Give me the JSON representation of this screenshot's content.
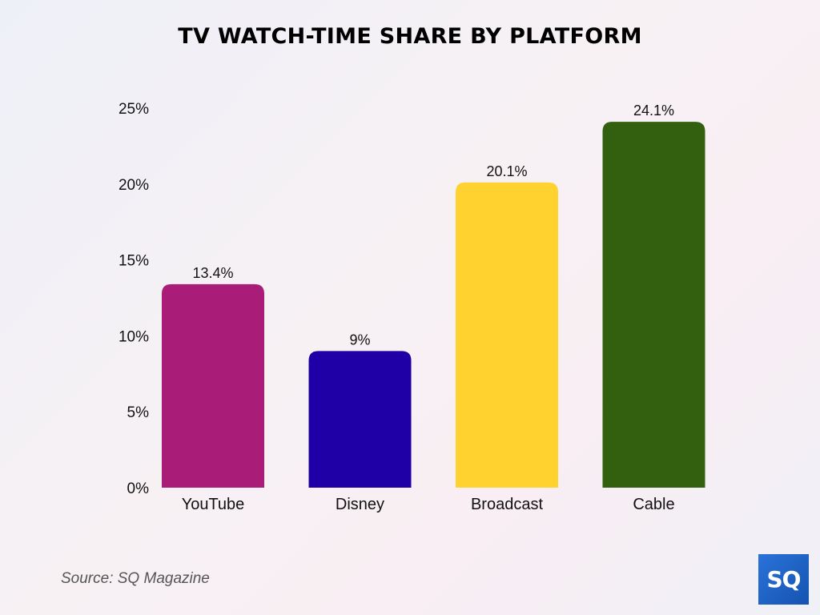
{
  "chart_data": {
    "type": "bar",
    "title": "TV WATCH-TIME SHARE BY PLATFORM",
    "categories": [
      "YouTube",
      "Disney",
      "Broadcast",
      "Cable"
    ],
    "values": [
      13.4,
      9,
      20.1,
      24.1
    ],
    "value_labels": [
      "13.4%",
      "9%",
      "20.1%",
      "24.1%"
    ],
    "colors": [
      "#a91d78",
      "#1f00a6",
      "#ffd230",
      "#33600f"
    ],
    "ylim": [
      0,
      25
    ],
    "yticks": [
      0,
      5,
      10,
      15,
      20,
      25
    ],
    "ytick_labels": [
      "0%",
      "5%",
      "10%",
      "15%",
      "20%",
      "25%"
    ],
    "xlabel": "",
    "ylabel": "",
    "grid": false,
    "legend": "none"
  },
  "source": "Source: SQ Magazine",
  "logo": {
    "text": "SQ",
    "color": "#1f63c8"
  }
}
